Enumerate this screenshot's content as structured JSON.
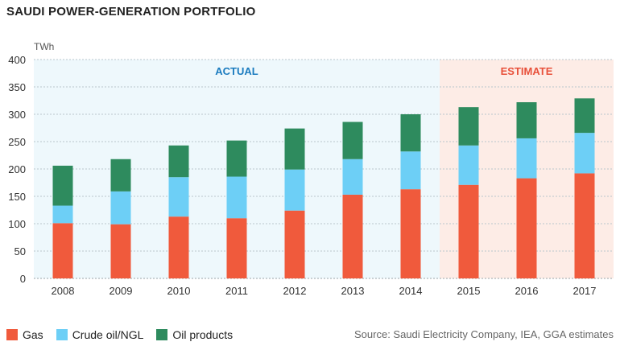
{
  "title": "SAUDI POWER-GENERATION PORTFOLIO",
  "source": "Source: Saudi Electricity Company, IEA, GGA estimates",
  "colors": {
    "gas": "#f05a3c",
    "crude": "#6dcff6",
    "oil": "#2e8b5e",
    "actual_bg": "#eef8fc",
    "estimate_bg": "#fdece6",
    "actual_text": "#1a7bbf",
    "estimate_text": "#e8503a"
  },
  "chart_data": {
    "type": "bar",
    "stacked": true,
    "title": "SAUDI POWER-GENERATION PORTFOLIO",
    "ylabel": "TWh",
    "ylim": [
      0,
      400
    ],
    "yticks": [
      0,
      50,
      100,
      150,
      200,
      250,
      300,
      350,
      400
    ],
    "categories": [
      "2008",
      "2009",
      "2010",
      "2011",
      "2012",
      "2013",
      "2014",
      "2015",
      "2016",
      "2017"
    ],
    "regions": [
      {
        "label": "ACTUAL",
        "from": "2008",
        "to": "2014"
      },
      {
        "label": "ESTIMATE",
        "from": "2015",
        "to": "2017"
      }
    ],
    "series": [
      {
        "name": "Gas",
        "key": "gas",
        "values": [
          101,
          99,
          113,
          110,
          124,
          153,
          163,
          171,
          183,
          192
        ]
      },
      {
        "name": "Crude oil/NGL",
        "key": "crude",
        "values": [
          32,
          60,
          72,
          76,
          75,
          65,
          69,
          72,
          73,
          74
        ]
      },
      {
        "name": "Oil products",
        "key": "oil",
        "values": [
          73,
          59,
          58,
          66,
          75,
          68,
          68,
          70,
          66,
          63
        ]
      }
    ]
  }
}
